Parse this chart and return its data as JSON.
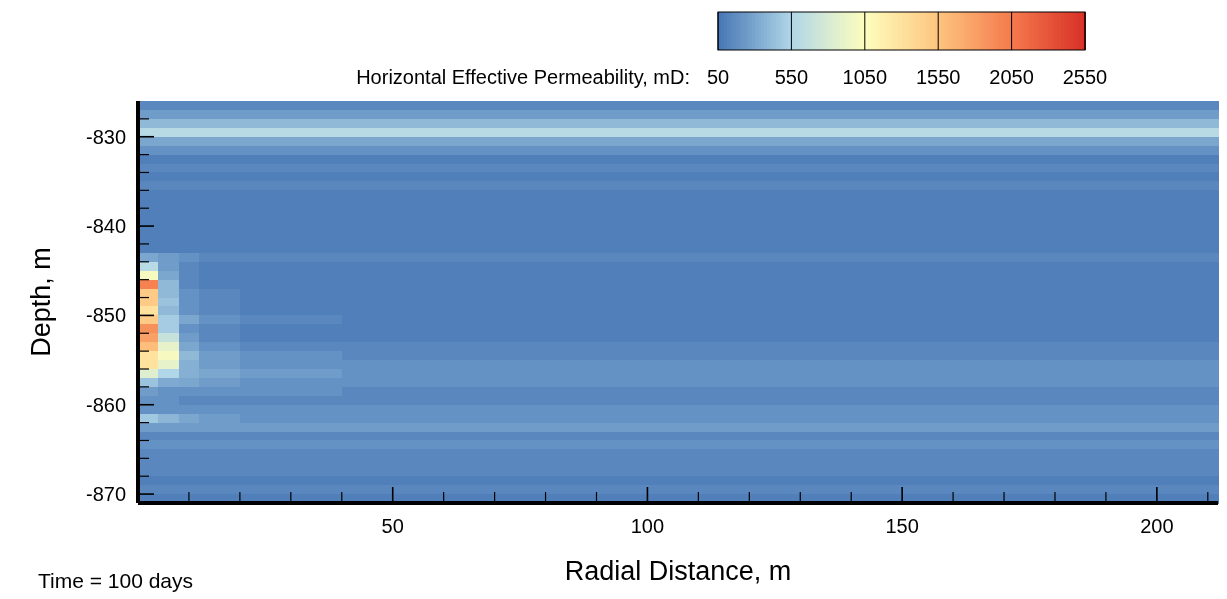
{
  "chart_data": {
    "type": "heatmap",
    "xlabel": "Radial Distance, m",
    "ylabel": "Depth, m",
    "clabel": "Horizontal Effective Permeability, mD:",
    "annotations": [
      "Time = 100 days"
    ],
    "xlim": [
      0,
      212
    ],
    "ylim": [
      -871,
      -826
    ],
    "xticks": [
      {
        "value": 10,
        "label": null
      },
      {
        "value": 20,
        "label": null
      },
      {
        "value": 30,
        "label": null
      },
      {
        "value": 40,
        "label": null
      },
      50,
      {
        "value": 60,
        "label": null
      },
      {
        "value": 70,
        "label": null
      },
      {
        "value": 80,
        "label": null
      },
      {
        "value": 90,
        "label": null
      },
      100,
      {
        "value": 110,
        "label": null
      },
      {
        "value": 120,
        "label": null
      },
      {
        "value": 130,
        "label": null
      },
      {
        "value": 140,
        "label": null
      },
      150,
      {
        "value": 160,
        "label": null
      },
      {
        "value": 170,
        "label": null
      },
      {
        "value": 180,
        "label": null
      },
      {
        "value": 190,
        "label": null
      },
      200,
      {
        "value": 210,
        "label": null
      }
    ],
    "yticks": [
      {
        "value": -828,
        "label": null
      },
      -830,
      {
        "value": -832,
        "label": null
      },
      {
        "value": -834,
        "label": null
      },
      {
        "value": -836,
        "label": null
      },
      {
        "value": -838,
        "label": null
      },
      -840,
      {
        "value": -842,
        "label": null
      },
      {
        "value": -844,
        "label": null
      },
      {
        "value": -846,
        "label": null
      },
      {
        "value": -848,
        "label": null
      },
      -850,
      {
        "value": -852,
        "label": null
      },
      {
        "value": -854,
        "label": null
      },
      {
        "value": -856,
        "label": null
      },
      {
        "value": -858,
        "label": null
      },
      -860,
      {
        "value": -862,
        "label": null
      },
      {
        "value": -864,
        "label": null
      },
      {
        "value": -866,
        "label": null
      },
      {
        "value": -868,
        "label": null
      },
      -870
    ],
    "clim": [
      50,
      2550
    ],
    "cticks": [
      50,
      550,
      1050,
      1550,
      2050,
      2550
    ],
    "cells": [
      [
        150,
        150,
        150,
        150,
        150,
        150,
        150,
        150,
        150,
        150,
        150,
        150,
        150,
        150,
        150,
        150,
        150,
        150,
        150,
        150,
        150,
        150,
        150,
        150,
        150,
        150,
        150,
        150,
        150,
        150,
        150,
        150,
        150,
        150,
        150,
        150,
        150,
        150,
        150,
        150,
        150,
        150,
        150,
        150,
        150,
        150,
        150,
        150,
        150,
        150,
        150,
        150,
        150
      ],
      [
        250,
        250,
        250,
        250,
        250,
        250,
        250,
        250,
        250,
        250,
        250,
        250,
        250,
        250,
        250,
        250,
        250,
        250,
        250,
        250,
        250,
        250,
        250,
        250,
        250,
        250,
        250,
        250,
        250,
        250,
        250,
        250,
        250,
        250,
        250,
        250,
        250,
        250,
        250,
        250,
        250,
        250,
        250,
        250,
        250,
        250,
        250,
        250,
        250,
        250,
        250,
        250,
        250
      ],
      [
        400,
        400,
        400,
        400,
        400,
        400,
        400,
        400,
        400,
        400,
        400,
        400,
        400,
        400,
        400,
        400,
        400,
        400,
        400,
        400,
        400,
        400,
        400,
        400,
        400,
        400,
        400,
        400,
        400,
        400,
        400,
        400,
        400,
        400,
        400,
        400,
        400,
        400,
        400,
        400,
        400,
        400,
        400,
        400,
        400,
        400,
        400,
        400,
        400,
        400,
        400,
        400,
        400
      ],
      [
        600,
        600,
        600,
        600,
        600,
        600,
        600,
        600,
        600,
        600,
        600,
        600,
        600,
        600,
        600,
        600,
        600,
        600,
        600,
        600,
        600,
        600,
        600,
        600,
        600,
        600,
        600,
        600,
        600,
        600,
        600,
        600,
        600,
        600,
        600,
        600,
        600,
        600,
        600,
        600,
        600,
        600,
        600,
        600,
        600,
        600,
        600,
        600,
        600,
        600,
        600,
        600,
        600
      ],
      [
        300,
        300,
        300,
        300,
        300,
        300,
        300,
        300,
        300,
        300,
        300,
        300,
        300,
        300,
        300,
        300,
        300,
        300,
        300,
        300,
        300,
        300,
        300,
        300,
        300,
        300,
        300,
        300,
        300,
        300,
        300,
        300,
        300,
        300,
        300,
        300,
        300,
        300,
        300,
        300,
        300,
        300,
        300,
        300,
        300,
        300,
        300,
        300,
        300,
        300,
        300,
        300,
        300
      ],
      [
        200,
        200,
        200,
        200,
        200,
        200,
        200,
        200,
        200,
        200,
        200,
        200,
        200,
        200,
        200,
        200,
        200,
        200,
        200,
        200,
        200,
        200,
        200,
        200,
        200,
        200,
        200,
        200,
        200,
        200,
        200,
        200,
        200,
        200,
        200,
        200,
        200,
        200,
        200,
        200,
        200,
        200,
        200,
        200,
        200,
        200,
        200,
        200,
        200,
        200,
        200,
        200,
        200
      ],
      [
        100,
        100,
        100,
        100,
        100,
        100,
        100,
        100,
        100,
        100,
        100,
        100,
        100,
        100,
        100,
        100,
        100,
        100,
        100,
        100,
        100,
        100,
        100,
        100,
        100,
        100,
        100,
        100,
        100,
        100,
        100,
        100,
        100,
        100,
        100,
        100,
        100,
        100,
        100,
        100,
        100,
        100,
        100,
        100,
        100,
        100,
        100,
        100,
        100,
        100,
        100,
        100,
        100
      ],
      [
        150,
        150,
        150,
        150,
        150,
        150,
        150,
        150,
        150,
        150,
        150,
        150,
        150,
        150,
        150,
        150,
        150,
        150,
        150,
        150,
        150,
        150,
        150,
        150,
        150,
        150,
        150,
        150,
        150,
        150,
        150,
        150,
        150,
        150,
        150,
        150,
        150,
        150,
        150,
        150,
        150,
        150,
        150,
        150,
        150,
        150,
        150,
        150,
        150,
        150,
        150,
        150,
        150
      ],
      [
        100,
        100,
        100,
        100,
        100,
        100,
        100,
        100,
        100,
        100,
        100,
        100,
        100,
        100,
        100,
        100,
        100,
        100,
        100,
        100,
        100,
        100,
        100,
        100,
        100,
        100,
        100,
        100,
        100,
        100,
        100,
        100,
        100,
        100,
        100,
        100,
        100,
        100,
        100,
        100,
        100,
        100,
        100,
        100,
        100,
        100,
        100,
        100,
        100,
        100,
        100,
        100,
        100
      ],
      [
        150,
        150,
        150,
        150,
        150,
        150,
        150,
        150,
        150,
        150,
        150,
        150,
        150,
        150,
        150,
        150,
        150,
        150,
        150,
        150,
        150,
        150,
        150,
        150,
        150,
        150,
        150,
        150,
        150,
        150,
        150,
        150,
        150,
        150,
        150,
        150,
        150,
        150,
        150,
        150,
        150,
        150,
        150,
        150,
        150,
        150,
        150,
        150,
        150,
        150,
        150,
        150,
        150
      ],
      [
        100,
        100,
        100,
        100,
        100,
        100,
        100,
        100,
        100,
        100,
        100,
        100,
        100,
        100,
        100,
        100,
        100,
        100,
        100,
        100,
        100,
        100,
        100,
        100,
        100,
        100,
        100,
        100,
        100,
        100,
        100,
        100,
        100,
        100,
        100,
        100,
        100,
        100,
        100,
        100,
        100,
        100,
        100,
        100,
        100,
        100,
        100,
        100,
        100,
        100,
        100,
        100,
        100
      ],
      [
        100,
        100,
        100,
        100,
        100,
        100,
        100,
        100,
        100,
        100,
        100,
        100,
        100,
        100,
        100,
        100,
        100,
        100,
        100,
        100,
        100,
        100,
        100,
        100,
        100,
        100,
        100,
        100,
        100,
        100,
        100,
        100,
        100,
        100,
        100,
        100,
        100,
        100,
        100,
        100,
        100,
        100,
        100,
        100,
        100,
        100,
        100,
        100,
        100,
        100,
        100,
        100,
        100
      ],
      [
        100,
        100,
        100,
        100,
        100,
        100,
        100,
        100,
        100,
        100,
        100,
        100,
        100,
        100,
        100,
        100,
        100,
        100,
        100,
        100,
        100,
        100,
        100,
        100,
        100,
        100,
        100,
        100,
        100,
        100,
        100,
        100,
        100,
        100,
        100,
        100,
        100,
        100,
        100,
        100,
        100,
        100,
        100,
        100,
        100,
        100,
        100,
        100,
        100,
        100,
        100,
        100,
        100
      ],
      [
        100,
        100,
        100,
        100,
        100,
        100,
        100,
        100,
        100,
        100,
        100,
        100,
        100,
        100,
        100,
        100,
        100,
        100,
        100,
        100,
        100,
        100,
        100,
        100,
        100,
        100,
        100,
        100,
        100,
        100,
        100,
        100,
        100,
        100,
        100,
        100,
        100,
        100,
        100,
        100,
        100,
        100,
        100,
        100,
        100,
        100,
        100,
        100,
        100,
        100,
        100,
        100,
        100
      ],
      [
        100,
        100,
        100,
        100,
        100,
        100,
        100,
        100,
        100,
        100,
        100,
        100,
        100,
        100,
        100,
        100,
        100,
        100,
        100,
        100,
        100,
        100,
        100,
        100,
        100,
        100,
        100,
        100,
        100,
        100,
        100,
        100,
        100,
        100,
        100,
        100,
        100,
        100,
        100,
        100,
        100,
        100,
        100,
        100,
        100,
        100,
        100,
        100,
        100,
        100,
        100,
        100,
        100
      ],
      [
        100,
        100,
        100,
        100,
        100,
        100,
        100,
        100,
        100,
        100,
        100,
        100,
        100,
        100,
        100,
        100,
        100,
        100,
        100,
        100,
        100,
        100,
        100,
        100,
        100,
        100,
        100,
        100,
        100,
        100,
        100,
        100,
        100,
        100,
        100,
        100,
        100,
        100,
        100,
        100,
        100,
        100,
        100,
        100,
        100,
        100,
        100,
        100,
        100,
        100,
        100,
        100,
        100
      ],
      [
        100,
        100,
        100,
        100,
        100,
        100,
        100,
        100,
        100,
        100,
        100,
        100,
        100,
        100,
        100,
        100,
        100,
        100,
        100,
        100,
        100,
        100,
        100,
        100,
        100,
        100,
        100,
        100,
        100,
        100,
        100,
        100,
        100,
        100,
        100,
        100,
        100,
        100,
        100,
        100,
        100,
        100,
        100,
        100,
        100,
        100,
        100,
        100,
        100,
        100,
        100,
        100,
        100
      ],
      [
        300,
        250,
        200,
        150,
        150,
        150,
        150,
        150,
        150,
        150,
        150,
        150,
        150,
        150,
        150,
        150,
        150,
        150,
        150,
        150,
        150,
        150,
        150,
        150,
        150,
        150,
        150,
        150,
        150,
        150,
        150,
        150,
        150,
        150,
        150,
        150,
        150,
        150,
        150,
        150,
        150,
        150,
        150,
        150,
        150,
        150,
        150,
        150,
        150,
        150,
        150,
        150,
        150
      ],
      [
        600,
        250,
        150,
        100,
        100,
        100,
        100,
        100,
        100,
        100,
        100,
        100,
        100,
        100,
        100,
        100,
        100,
        100,
        100,
        100,
        100,
        100,
        100,
        100,
        100,
        100,
        100,
        100,
        100,
        100,
        100,
        100,
        100,
        100,
        100,
        100,
        100,
        100,
        100,
        100,
        100,
        100,
        100,
        100,
        100,
        100,
        100,
        100,
        100,
        100,
        100,
        100,
        100
      ],
      [
        1000,
        300,
        150,
        100,
        100,
        100,
        100,
        100,
        100,
        100,
        100,
        100,
        100,
        100,
        100,
        100,
        100,
        100,
        100,
        100,
        100,
        100,
        100,
        100,
        100,
        100,
        100,
        100,
        100,
        100,
        100,
        100,
        100,
        100,
        100,
        100,
        100,
        100,
        100,
        100,
        100,
        100,
        100,
        100,
        100,
        100,
        100,
        100,
        100,
        100,
        100,
        100,
        100
      ],
      [
        2000,
        400,
        150,
        100,
        100,
        100,
        100,
        100,
        100,
        100,
        100,
        100,
        100,
        100,
        100,
        100,
        100,
        100,
        100,
        100,
        100,
        100,
        100,
        100,
        100,
        100,
        100,
        100,
        100,
        100,
        100,
        100,
        100,
        100,
        100,
        100,
        100,
        100,
        100,
        100,
        100,
        100,
        100,
        100,
        100,
        100,
        100,
        100,
        100,
        100,
        100,
        100,
        100
      ],
      [
        1500,
        400,
        200,
        150,
        150,
        100,
        100,
        100,
        100,
        100,
        100,
        100,
        100,
        100,
        100,
        100,
        100,
        100,
        100,
        100,
        100,
        100,
        100,
        100,
        100,
        100,
        100,
        100,
        100,
        100,
        100,
        100,
        100,
        100,
        100,
        100,
        100,
        100,
        100,
        100,
        100,
        100,
        100,
        100,
        100,
        100,
        100,
        100,
        100,
        100,
        100,
        100,
        100
      ],
      [
        1500,
        450,
        200,
        150,
        150,
        100,
        100,
        100,
        100,
        100,
        100,
        100,
        100,
        100,
        100,
        100,
        100,
        100,
        100,
        100,
        100,
        100,
        100,
        100,
        100,
        100,
        100,
        100,
        100,
        100,
        100,
        100,
        100,
        100,
        100,
        100,
        100,
        100,
        100,
        100,
        100,
        100,
        100,
        100,
        100,
        100,
        100,
        100,
        100,
        100,
        100,
        100,
        100
      ],
      [
        1300,
        400,
        200,
        150,
        150,
        100,
        100,
        100,
        100,
        100,
        100,
        100,
        100,
        100,
        100,
        100,
        100,
        100,
        100,
        100,
        100,
        100,
        100,
        100,
        100,
        100,
        100,
        100,
        100,
        100,
        100,
        100,
        100,
        100,
        100,
        100,
        100,
        100,
        100,
        100,
        100,
        100,
        100,
        100,
        100,
        100,
        100,
        100,
        100,
        100,
        100,
        100,
        100
      ],
      [
        1500,
        500,
        300,
        200,
        200,
        150,
        150,
        150,
        150,
        150,
        100,
        100,
        100,
        100,
        100,
        100,
        100,
        100,
        100,
        100,
        100,
        100,
        100,
        100,
        100,
        100,
        100,
        100,
        100,
        100,
        100,
        100,
        100,
        100,
        100,
        100,
        100,
        100,
        100,
        100,
        100,
        100,
        100,
        100,
        100,
        100,
        100,
        100,
        100,
        100,
        100,
        100,
        100
      ],
      [
        1900,
        500,
        200,
        150,
        150,
        100,
        100,
        100,
        100,
        100,
        100,
        100,
        100,
        100,
        100,
        100,
        100,
        100,
        100,
        100,
        100,
        100,
        100,
        100,
        100,
        100,
        100,
        100,
        100,
        100,
        100,
        100,
        100,
        100,
        100,
        100,
        100,
        100,
        100,
        100,
        100,
        100,
        100,
        100,
        100,
        100,
        100,
        100,
        100,
        100,
        100,
        100,
        100
      ],
      [
        1800,
        700,
        250,
        150,
        150,
        100,
        100,
        100,
        100,
        100,
        100,
        100,
        100,
        100,
        100,
        100,
        100,
        100,
        100,
        100,
        100,
        100,
        100,
        100,
        100,
        100,
        100,
        100,
        100,
        100,
        100,
        100,
        100,
        100,
        100,
        100,
        100,
        100,
        100,
        100,
        100,
        100,
        100,
        100,
        100,
        100,
        100,
        100,
        100,
        100,
        100,
        100,
        100
      ],
      [
        1600,
        900,
        300,
        200,
        200,
        150,
        150,
        150,
        150,
        150,
        150,
        150,
        150,
        150,
        150,
        150,
        150,
        150,
        150,
        150,
        150,
        150,
        150,
        150,
        150,
        150,
        150,
        150,
        150,
        150,
        150,
        150,
        150,
        150,
        150,
        150,
        150,
        150,
        150,
        150,
        150,
        150,
        150,
        150,
        150,
        150,
        150,
        150,
        150,
        150,
        150,
        150,
        150
      ],
      [
        1300,
        1000,
        400,
        250,
        250,
        200,
        200,
        200,
        200,
        200,
        150,
        150,
        150,
        150,
        150,
        150,
        150,
        150,
        150,
        150,
        150,
        150,
        150,
        150,
        150,
        150,
        150,
        150,
        150,
        150,
        150,
        150,
        150,
        150,
        150,
        150,
        150,
        150,
        150,
        150,
        150,
        150,
        150,
        150,
        150,
        150,
        150,
        150,
        150,
        150,
        150,
        150,
        150
      ],
      [
        1300,
        900,
        350,
        250,
        250,
        200,
        200,
        200,
        200,
        200,
        200,
        200,
        200,
        200,
        200,
        200,
        200,
        200,
        200,
        200,
        200,
        200,
        200,
        200,
        200,
        200,
        200,
        200,
        200,
        200,
        200,
        200,
        200,
        200,
        200,
        200,
        200,
        200,
        200,
        200,
        200,
        200,
        200,
        200,
        200,
        200,
        200,
        200,
        200,
        200,
        200,
        200,
        200
      ],
      [
        850,
        550,
        350,
        300,
        300,
        250,
        250,
        250,
        250,
        250,
        200,
        200,
        200,
        200,
        200,
        200,
        200,
        200,
        200,
        200,
        200,
        200,
        200,
        200,
        200,
        200,
        200,
        200,
        200,
        200,
        200,
        200,
        200,
        200,
        200,
        200,
        200,
        200,
        200,
        200,
        200,
        200,
        200,
        200,
        200,
        200,
        200,
        200,
        200,
        200,
        200,
        200,
        200
      ],
      [
        450,
        320,
        300,
        250,
        250,
        200,
        200,
        200,
        200,
        200,
        200,
        200,
        200,
        200,
        200,
        200,
        200,
        200,
        200,
        200,
        200,
        200,
        200,
        200,
        200,
        200,
        200,
        200,
        200,
        200,
        200,
        200,
        200,
        200,
        200,
        200,
        200,
        200,
        200,
        200,
        200,
        200,
        200,
        200,
        200,
        200,
        200,
        200,
        200,
        200,
        200,
        200,
        200
      ],
      [
        250,
        200,
        200,
        200,
        200,
        200,
        200,
        200,
        200,
        200,
        150,
        150,
        150,
        150,
        150,
        150,
        150,
        150,
        150,
        150,
        150,
        150,
        150,
        150,
        150,
        150,
        150,
        150,
        150,
        150,
        150,
        150,
        150,
        150,
        150,
        150,
        150,
        150,
        150,
        150,
        150,
        150,
        150,
        150,
        150,
        150,
        150,
        150,
        150,
        150,
        150,
        150,
        150
      ],
      [
        200,
        200,
        150,
        150,
        150,
        150,
        150,
        150,
        150,
        150,
        150,
        150,
        150,
        150,
        150,
        150,
        150,
        150,
        150,
        150,
        150,
        150,
        150,
        150,
        150,
        150,
        150,
        150,
        150,
        150,
        150,
        150,
        150,
        150,
        150,
        150,
        150,
        150,
        150,
        150,
        150,
        150,
        150,
        150,
        150,
        150,
        150,
        150,
        150,
        150,
        150,
        150,
        150
      ],
      [
        200,
        200,
        200,
        200,
        200,
        200,
        200,
        200,
        200,
        200,
        200,
        200,
        200,
        200,
        200,
        200,
        200,
        200,
        200,
        200,
        200,
        200,
        200,
        200,
        200,
        200,
        200,
        200,
        200,
        200,
        200,
        200,
        200,
        200,
        200,
        200,
        200,
        200,
        200,
        200,
        200,
        200,
        200,
        200,
        200,
        200,
        200,
        200,
        200,
        200,
        200,
        200,
        200
      ],
      [
        480,
        380,
        300,
        250,
        250,
        200,
        200,
        200,
        200,
        200,
        200,
        200,
        200,
        200,
        200,
        200,
        200,
        200,
        200,
        200,
        200,
        200,
        200,
        200,
        200,
        200,
        200,
        200,
        200,
        200,
        200,
        200,
        200,
        200,
        200,
        200,
        200,
        200,
        200,
        200,
        200,
        200,
        200,
        200,
        200,
        200,
        200,
        200,
        200,
        200,
        200,
        200,
        200
      ],
      [
        250,
        250,
        250,
        250,
        250,
        250,
        250,
        250,
        250,
        250,
        250,
        250,
        250,
        250,
        250,
        250,
        250,
        250,
        250,
        250,
        250,
        250,
        250,
        250,
        250,
        250,
        250,
        250,
        250,
        250,
        250,
        250,
        250,
        250,
        250,
        250,
        250,
        250,
        250,
        250,
        250,
        250,
        250,
        250,
        250,
        250,
        250,
        250,
        250,
        250,
        250,
        250,
        250
      ],
      [
        150,
        150,
        150,
        150,
        150,
        150,
        150,
        150,
        150,
        150,
        150,
        150,
        150,
        150,
        150,
        150,
        150,
        150,
        150,
        150,
        150,
        150,
        150,
        150,
        150,
        150,
        150,
        150,
        150,
        150,
        150,
        150,
        150,
        150,
        150,
        150,
        150,
        150,
        150,
        150,
        150,
        150,
        150,
        150,
        150,
        150,
        150,
        150,
        150,
        150,
        150,
        150,
        150
      ],
      [
        200,
        200,
        200,
        200,
        200,
        200,
        200,
        200,
        200,
        200,
        200,
        200,
        200,
        200,
        200,
        200,
        200,
        200,
        200,
        200,
        200,
        200,
        200,
        200,
        200,
        200,
        200,
        200,
        200,
        200,
        200,
        200,
        200,
        200,
        200,
        200,
        200,
        200,
        200,
        200,
        200,
        200,
        200,
        200,
        200,
        200,
        200,
        200,
        200,
        200,
        200,
        200,
        200
      ],
      [
        150,
        150,
        150,
        150,
        150,
        150,
        150,
        150,
        150,
        150,
        150,
        150,
        150,
        150,
        150,
        150,
        150,
        150,
        150,
        150,
        150,
        150,
        150,
        150,
        150,
        150,
        150,
        150,
        150,
        150,
        150,
        150,
        150,
        150,
        150,
        150,
        150,
        150,
        150,
        150,
        150,
        150,
        150,
        150,
        150,
        150,
        150,
        150,
        150,
        150,
        150,
        150,
        150
      ],
      [
        150,
        150,
        150,
        150,
        150,
        150,
        150,
        150,
        150,
        150,
        150,
        150,
        150,
        150,
        150,
        150,
        150,
        150,
        150,
        150,
        150,
        150,
        150,
        150,
        150,
        150,
        150,
        150,
        150,
        150,
        150,
        150,
        150,
        150,
        150,
        150,
        150,
        150,
        150,
        150,
        150,
        150,
        150,
        150,
        150,
        150,
        150,
        150,
        150,
        150,
        150,
        150,
        150
      ],
      [
        150,
        150,
        150,
        150,
        150,
        150,
        150,
        150,
        150,
        150,
        150,
        150,
        150,
        150,
        150,
        150,
        150,
        150,
        150,
        150,
        150,
        150,
        150,
        150,
        150,
        150,
        150,
        150,
        150,
        150,
        150,
        150,
        150,
        150,
        150,
        150,
        150,
        150,
        150,
        150,
        150,
        150,
        150,
        150,
        150,
        150,
        150,
        150,
        150,
        150,
        150,
        150,
        150
      ],
      [
        100,
        100,
        100,
        100,
        100,
        100,
        100,
        100,
        100,
        100,
        100,
        100,
        100,
        100,
        100,
        100,
        100,
        100,
        100,
        100,
        100,
        100,
        100,
        100,
        100,
        100,
        100,
        100,
        100,
        100,
        100,
        100,
        100,
        100,
        100,
        100,
        100,
        100,
        100,
        100,
        100,
        100,
        100,
        100,
        100,
        100,
        100,
        100,
        100,
        100,
        100,
        100,
        100
      ],
      [
        150,
        150,
        150,
        150,
        150,
        150,
        150,
        150,
        150,
        150,
        150,
        150,
        150,
        150,
        150,
        150,
        150,
        150,
        150,
        150,
        150,
        150,
        150,
        150,
        150,
        150,
        150,
        150,
        150,
        150,
        150,
        150,
        150,
        150,
        150,
        150,
        150,
        150,
        150,
        150,
        150,
        150,
        150,
        150,
        150,
        150,
        150,
        150,
        150,
        150,
        150,
        150,
        150
      ],
      [
        100,
        100,
        100,
        100,
        100,
        100,
        100,
        100,
        100,
        100,
        100,
        100,
        100,
        100,
        100,
        100,
        100,
        100,
        100,
        100,
        100,
        100,
        100,
        100,
        100,
        100,
        100,
        100,
        100,
        100,
        100,
        100,
        100,
        100,
        100,
        100,
        100,
        100,
        100,
        100,
        100,
        100,
        100,
        100,
        100,
        100,
        100,
        100,
        100,
        100,
        100,
        100,
        100
      ]
    ]
  }
}
